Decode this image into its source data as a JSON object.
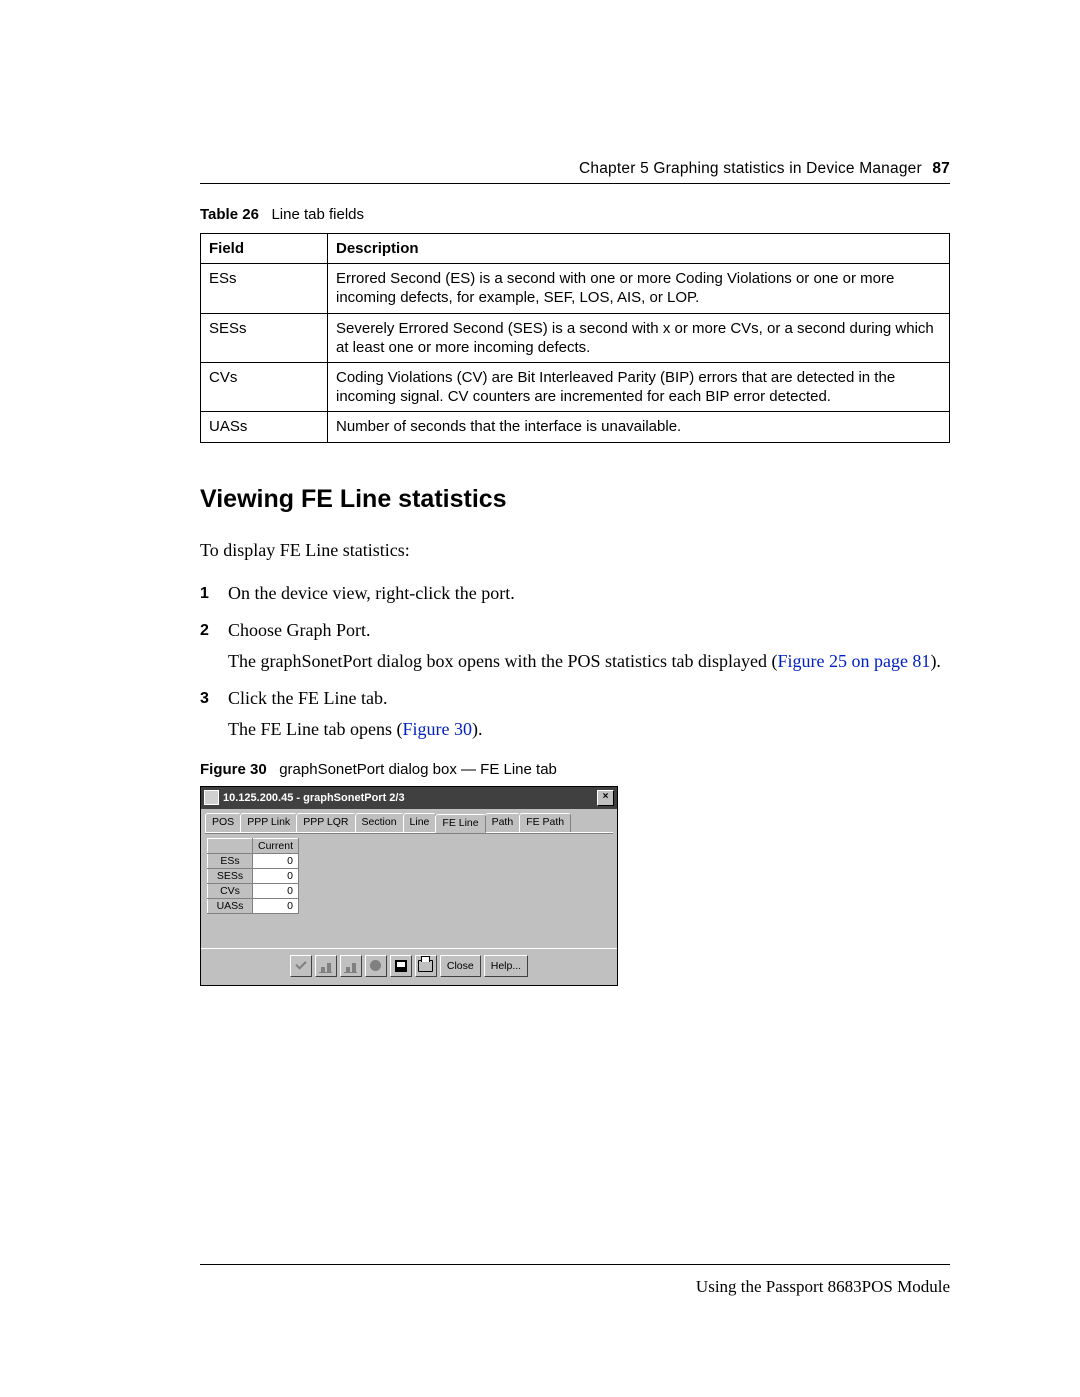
{
  "header": {
    "chapter": "Chapter 5  Graphing statistics in Device Manager",
    "page_number": "87"
  },
  "table_caption": {
    "label": "Table 26",
    "title": "Line tab fields"
  },
  "fields_table": {
    "headers": [
      "Field",
      "Description"
    ],
    "rows": [
      [
        "ESs",
        "Errored Second (ES) is a second with one or more Coding Violations or one or more incoming defects, for example, SEF, LOS, AIS, or LOP."
      ],
      [
        "SESs",
        "Severely Errored Second (SES) is a second with x or more CVs, or a second during which at least one or more incoming defects."
      ],
      [
        "CVs",
        "Coding Violations (CV) are Bit Interleaved Parity (BIP) errors that are detected in the incoming signal. CV counters are incremented for each BIP error detected."
      ],
      [
        "UASs",
        "Number of seconds that the interface is unavailable."
      ]
    ]
  },
  "section_heading": "Viewing FE Line statistics",
  "intro": "To display FE Line statistics:",
  "steps": {
    "s1": "On the device view, right-click the port.",
    "s2": "Choose Graph Port.",
    "s2b_pre": "The graphSonetPort dialog box opens with the POS statistics tab displayed (",
    "s2b_link": "Figure 25 on page 81",
    "s2b_post": ").",
    "s3": "Click the FE Line tab.",
    "s3b_pre": "The FE Line tab opens (",
    "s3b_link": "Figure 30",
    "s3b_post": ")."
  },
  "figure_caption": {
    "label": "Figure 30",
    "title": "graphSonetPort dialog box — FE Line tab"
  },
  "dialog": {
    "title": "10.125.200.45 - graphSonetPort 2/3",
    "tabs": [
      "POS",
      "PPP Link",
      "PPP LQR",
      "Section",
      "Line",
      "FE Line",
      "Path",
      "FE Path"
    ],
    "active_tab_index": 5,
    "col_header": "Current",
    "rows": [
      {
        "name": "ESs",
        "value": "0"
      },
      {
        "name": "SESs",
        "value": "0"
      },
      {
        "name": "CVs",
        "value": "0"
      },
      {
        "name": "UASs",
        "value": "0"
      }
    ],
    "buttons": {
      "close": "Close",
      "help": "Help..."
    }
  },
  "footer": "Using the Passport 8683POS Module"
}
